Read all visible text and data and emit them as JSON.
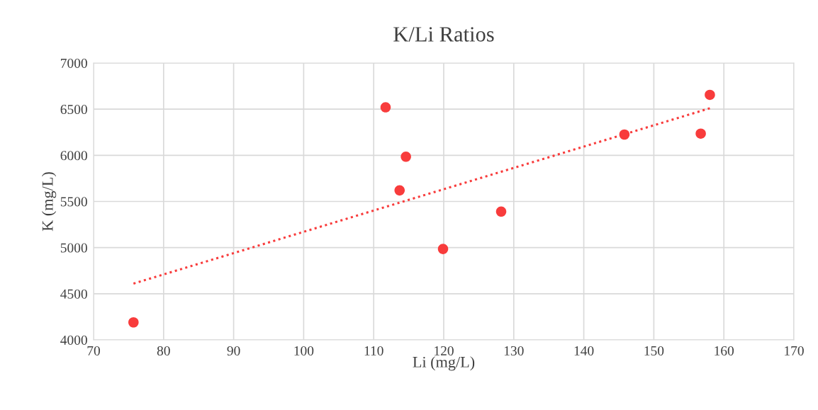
{
  "chart_data": {
    "type": "scatter",
    "title": "K/Li Ratios",
    "xlabel": "Li (mg/L)",
    "ylabel": "K (mg/L)",
    "xlim": [
      70,
      170
    ],
    "xticks": [
      70,
      80,
      90,
      100,
      110,
      120,
      130,
      140,
      150,
      160,
      170
    ],
    "ylim": [
      4000,
      7000
    ],
    "yticks": [
      4000,
      4500,
      5000,
      5500,
      6000,
      6500,
      7000
    ],
    "grid": true,
    "marker": "circle",
    "series": [
      {
        "color": "#f83c3c",
        "x": [
          75.7,
          111.7,
          113.7,
          114.6,
          119.9,
          128.2,
          145.8,
          156.7,
          158.0
        ],
        "values": [
          4190,
          6520,
          5620,
          5985,
          4985,
          5390,
          6225,
          6235,
          6655
        ]
      },
      {
        "type": "line",
        "color": "#f83c3c",
        "line_style": "dotted",
        "marker": "none",
        "x": [
          75.7,
          158.0
        ],
        "values": [
          4610,
          6510
        ]
      }
    ]
  }
}
